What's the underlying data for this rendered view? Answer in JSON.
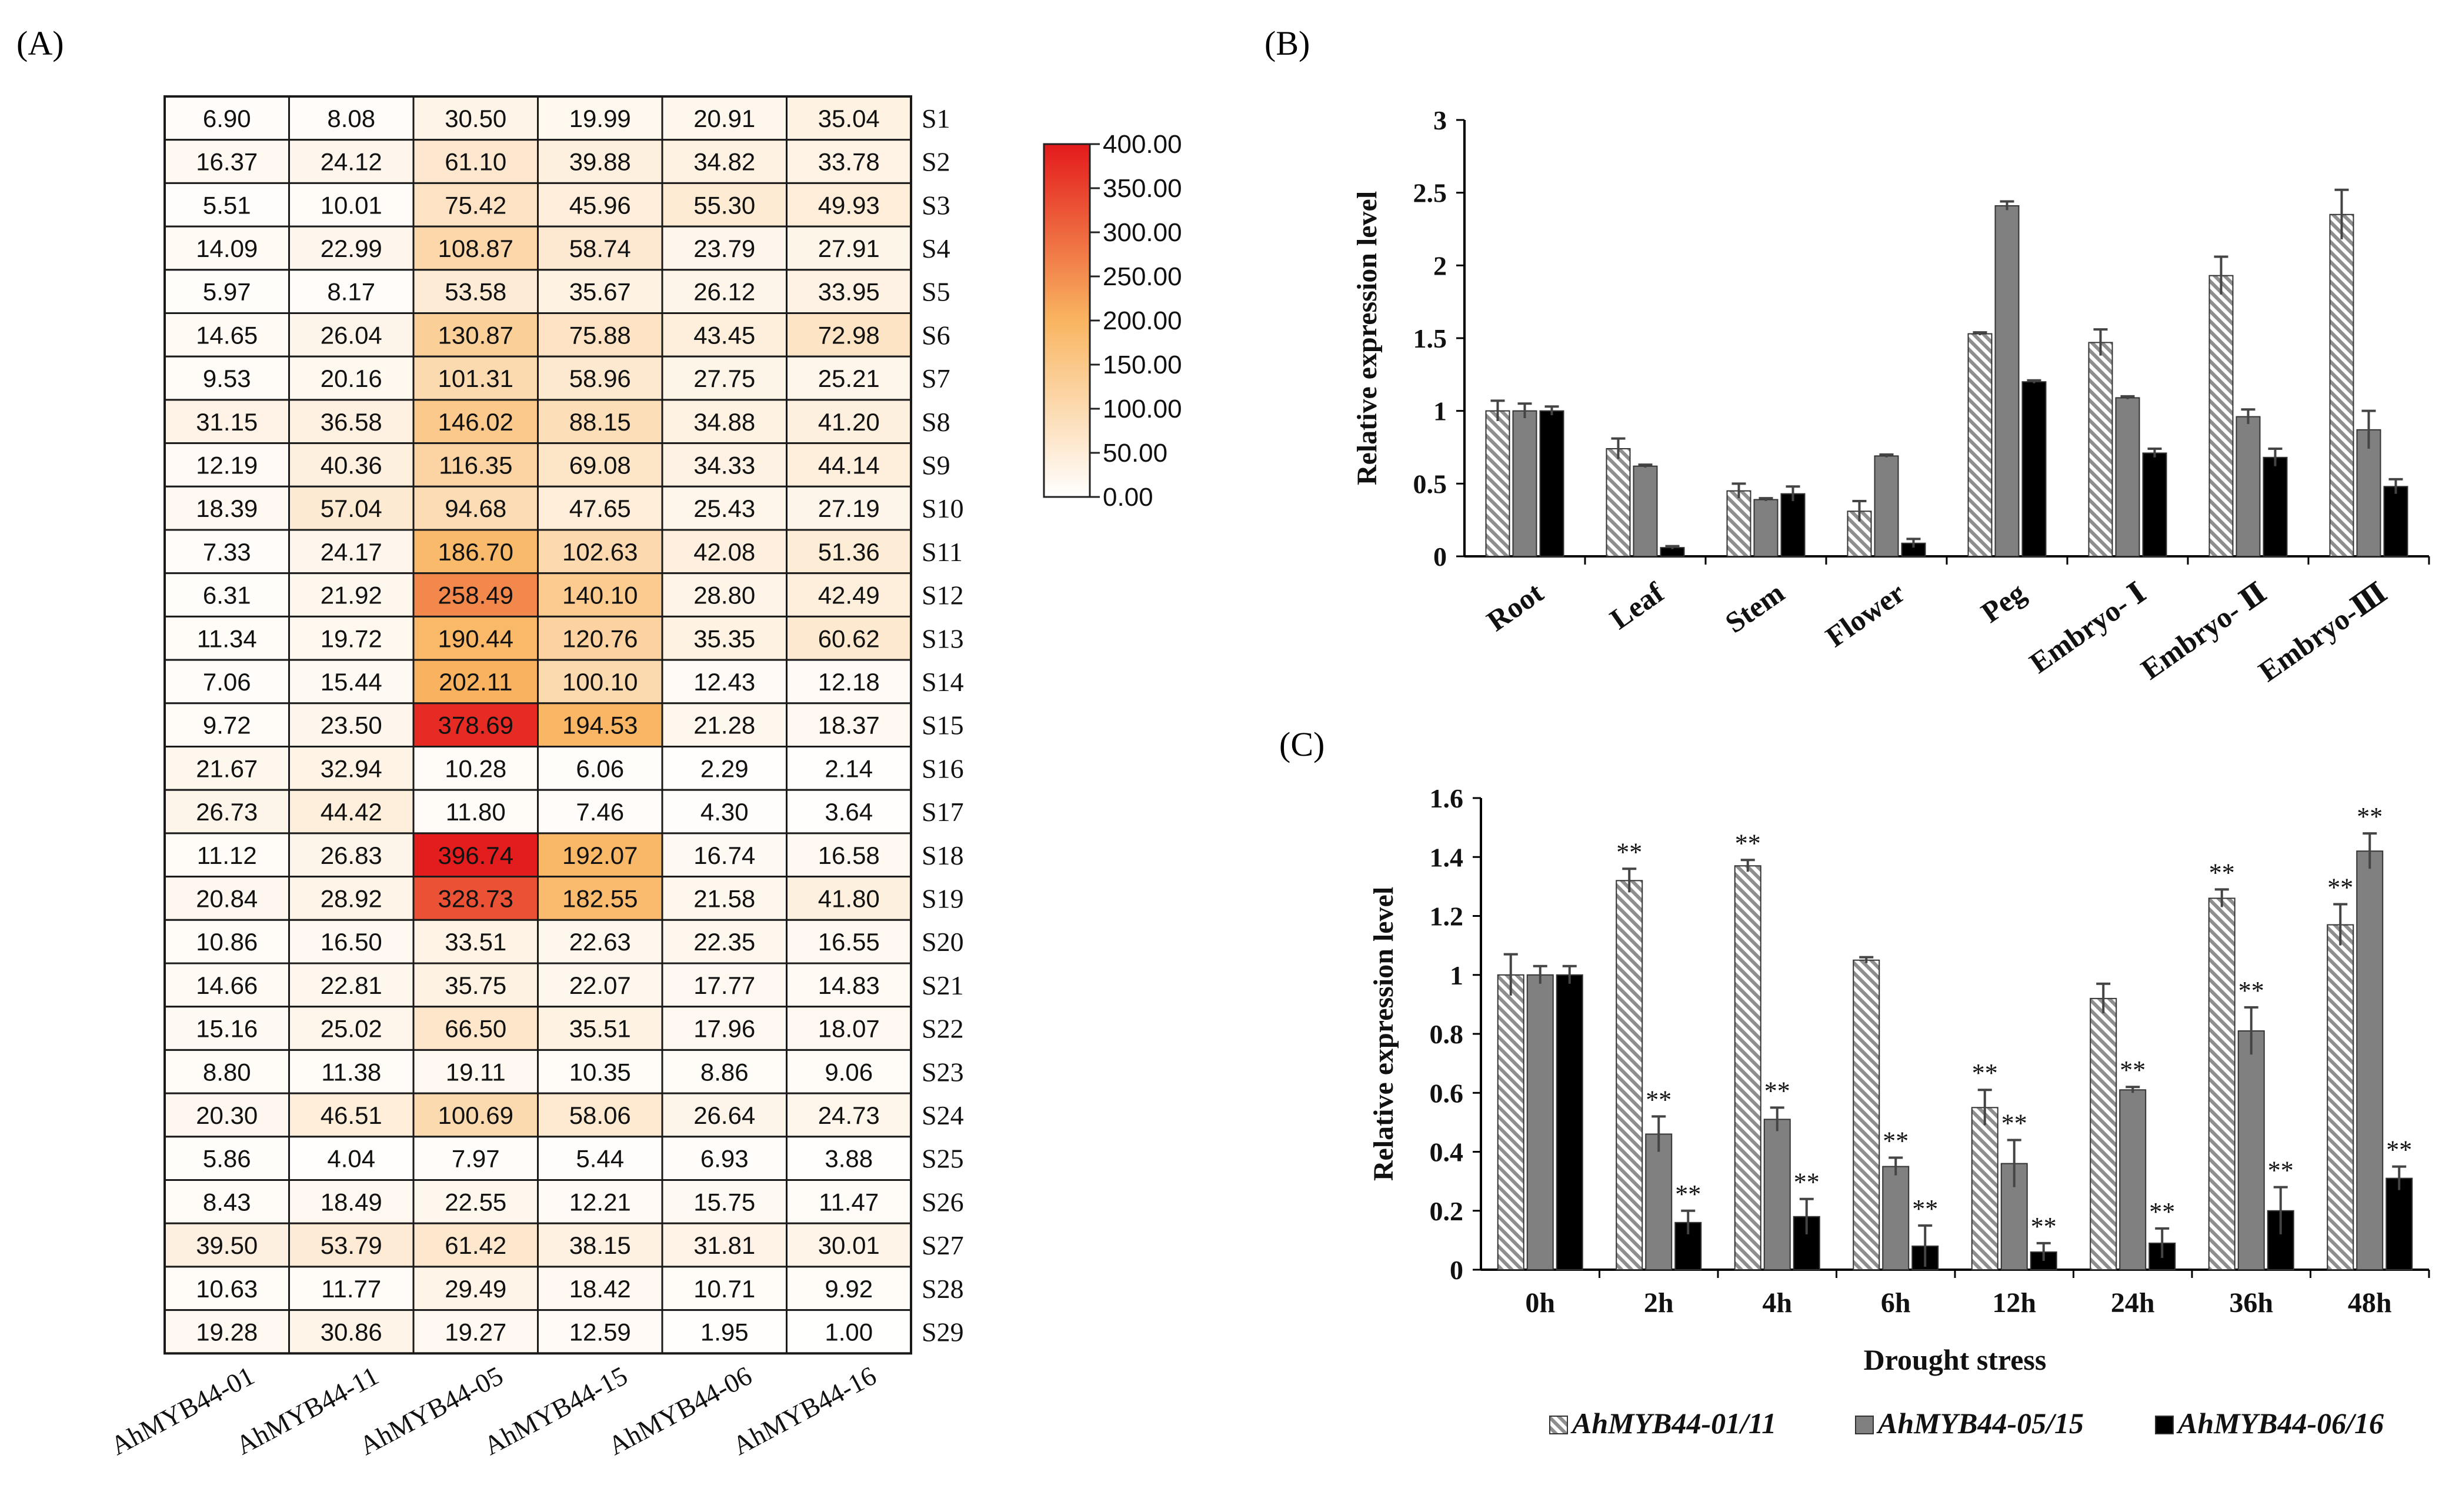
{
  "panel_labels": {
    "a": "(A)",
    "b": "(B)",
    "c": "(C)"
  },
  "colors": {
    "heat_low": "#ffffff",
    "heat_mid": "#f9b561",
    "heat_high": "#e31a1c",
    "hatch": "#9e9e9e",
    "gray_bar": "#808080",
    "black_bar": "#000000"
  },
  "chart_data": [
    {
      "type": "heatmap",
      "id": "A",
      "columns": [
        "AhMYB44-01",
        "AhMYB44-11",
        "AhMYB44-05",
        "AhMYB44-15",
        "AhMYB44-06",
        "AhMYB44-16"
      ],
      "rows": [
        "S1",
        "S2",
        "S3",
        "S4",
        "S5",
        "S6",
        "S7",
        "S8",
        "S9",
        "S10",
        "S11",
        "S12",
        "S13",
        "S14",
        "S15",
        "S16",
        "S17",
        "S18",
        "S19",
        "S20",
        "S21",
        "S22",
        "S23",
        "S24",
        "S25",
        "S26",
        "S27",
        "S28",
        "S29"
      ],
      "values": [
        [
          "6.90",
          "8.08",
          "30.50",
          "19.99",
          "20.91",
          "35.04"
        ],
        [
          "16.37",
          "24.12",
          "61.10",
          "39.88",
          "34.82",
          "33.78"
        ],
        [
          "5.51",
          "10.01",
          "75.42",
          "45.96",
          "55.30",
          "49.93"
        ],
        [
          "14.09",
          "22.99",
          "108.87",
          "58.74",
          "23.79",
          "27.91"
        ],
        [
          "5.97",
          "8.17",
          "53.58",
          "35.67",
          "26.12",
          "33.95"
        ],
        [
          "14.65",
          "26.04",
          "130.87",
          "75.88",
          "43.45",
          "72.98"
        ],
        [
          "9.53",
          "20.16",
          "101.31",
          "58.96",
          "27.75",
          "25.21"
        ],
        [
          "31.15",
          "36.58",
          "146.02",
          "88.15",
          "34.88",
          "41.20"
        ],
        [
          "12.19",
          "40.36",
          "116.35",
          "69.08",
          "34.33",
          "44.14"
        ],
        [
          "18.39",
          "57.04",
          "94.68",
          "47.65",
          "25.43",
          "27.19"
        ],
        [
          "7.33",
          "24.17",
          "186.70",
          "102.63",
          "42.08",
          "51.36"
        ],
        [
          "6.31",
          "21.92",
          "258.49",
          "140.10",
          "28.80",
          "42.49"
        ],
        [
          "11.34",
          "19.72",
          "190.44",
          "120.76",
          "35.35",
          "60.62"
        ],
        [
          "7.06",
          "15.44",
          "202.11",
          "100.10",
          "12.43",
          "12.18"
        ],
        [
          "9.72",
          "23.50",
          "378.69",
          "194.53",
          "21.28",
          "18.37"
        ],
        [
          "21.67",
          "32.94",
          "10.28",
          "6.06",
          "2.29",
          "2.14"
        ],
        [
          "26.73",
          "44.42",
          "11.80",
          "7.46",
          "4.30",
          "3.64"
        ],
        [
          "11.12",
          "26.83",
          "396.74",
          "192.07",
          "16.74",
          "16.58"
        ],
        [
          "20.84",
          "28.92",
          "328.73",
          "182.55",
          "21.58",
          "41.80"
        ],
        [
          "10.86",
          "16.50",
          "33.51",
          "22.63",
          "22.35",
          "16.55"
        ],
        [
          "14.66",
          "22.81",
          "35.75",
          "22.07",
          "17.77",
          "14.83"
        ],
        [
          "15.16",
          "25.02",
          "66.50",
          "35.51",
          "17.96",
          "18.07"
        ],
        [
          "8.80",
          "11.38",
          "19.11",
          "10.35",
          "8.86",
          "9.06"
        ],
        [
          "20.30",
          "46.51",
          "100.69",
          "58.06",
          "26.64",
          "24.73"
        ],
        [
          "5.86",
          "4.04",
          "7.97",
          "5.44",
          "6.93",
          "3.88"
        ],
        [
          "8.43",
          "18.49",
          "22.55",
          "12.21",
          "15.75",
          "11.47"
        ],
        [
          "39.50",
          "53.79",
          "61.42",
          "38.15",
          "31.81",
          "30.01"
        ],
        [
          "10.63",
          "11.77",
          "29.49",
          "18.42",
          "10.71",
          "9.92"
        ],
        [
          "19.28",
          "30.86",
          "19.27",
          "12.59",
          "1.95",
          "1.00"
        ]
      ],
      "scale": {
        "min": 0,
        "max": 400
      },
      "legend_ticks": [
        "400.00",
        "350.00",
        "300.00",
        "250.00",
        "200.00",
        "150.00",
        "100.00",
        "50.00",
        "0.00"
      ]
    },
    {
      "type": "bar",
      "id": "B",
      "ylabel": "Relative expression level",
      "ylim": [
        0,
        3
      ],
      "yticks": [
        "0",
        "0.5",
        "1",
        "1.5",
        "2",
        "2.5",
        "3"
      ],
      "categories": [
        "Root",
        "Leaf",
        "Stem",
        "Flower",
        "Peg",
        "Embryo- Ⅰ",
        "Embryo- Ⅱ",
        "Embryo-Ⅲ"
      ],
      "series": [
        {
          "name": "AhMYB44-01/11",
          "style": "hatch",
          "values": [
            1.0,
            0.74,
            0.45,
            0.31,
            1.53,
            1.47,
            1.93,
            2.35
          ],
          "errors": [
            0.07,
            0.07,
            0.05,
            0.07,
            0.01,
            0.09,
            0.13,
            0.17
          ]
        },
        {
          "name": "AhMYB44-05/15",
          "style": "gray",
          "values": [
            1.0,
            0.62,
            0.39,
            0.69,
            2.41,
            1.09,
            0.96,
            0.87
          ],
          "errors": [
            0.05,
            0.01,
            0.01,
            0.01,
            0.03,
            0.01,
            0.05,
            0.13
          ]
        },
        {
          "name": "AhMYB44-06/16",
          "style": "black",
          "values": [
            1.0,
            0.06,
            0.43,
            0.09,
            1.2,
            0.71,
            0.68,
            0.48
          ],
          "errors": [
            0.03,
            0.01,
            0.05,
            0.03,
            0.01,
            0.03,
            0.06,
            0.05
          ]
        }
      ]
    },
    {
      "type": "bar",
      "id": "C",
      "xlabel": "Drought stress",
      "ylabel": "Relative expression level",
      "ylim": [
        0,
        1.6
      ],
      "yticks": [
        "0",
        "0.2",
        "0.4",
        "0.6",
        "0.8",
        "1",
        "1.2",
        "1.4",
        "1.6"
      ],
      "categories": [
        "0h",
        "2h",
        "4h",
        "6h",
        "12h",
        "24h",
        "36h",
        "48h"
      ],
      "series": [
        {
          "name": "AhMYB44-01/11",
          "style": "hatch",
          "values": [
            1.0,
            1.32,
            1.37,
            1.05,
            0.55,
            0.92,
            1.26,
            1.17
          ],
          "errors": [
            0.07,
            0.04,
            0.02,
            0.01,
            0.06,
            0.05,
            0.03,
            0.07
          ],
          "marks": [
            "",
            "**",
            "**",
            "",
            "**",
            "",
            "**",
            "**"
          ]
        },
        {
          "name": "AhMYB44-05/15",
          "style": "gray",
          "values": [
            1.0,
            0.46,
            0.51,
            0.35,
            0.36,
            0.61,
            0.81,
            1.42
          ],
          "errors": [
            0.03,
            0.06,
            0.04,
            0.03,
            0.08,
            0.01,
            0.08,
            0.06
          ],
          "marks": [
            "",
            "**",
            "**",
            "**",
            "**",
            "**",
            "**",
            "**"
          ]
        },
        {
          "name": "AhMYB44-06/16",
          "style": "black",
          "values": [
            1.0,
            0.16,
            0.18,
            0.08,
            0.06,
            0.09,
            0.2,
            0.31
          ],
          "errors": [
            0.03,
            0.04,
            0.06,
            0.07,
            0.03,
            0.05,
            0.08,
            0.04
          ],
          "marks": [
            "",
            "**",
            "**",
            "**",
            "**",
            "**",
            "**",
            "**"
          ]
        }
      ],
      "legend": [
        "AhMYB44-01/11",
        "AhMYB44-05/15",
        "AhMYB44-06/16"
      ]
    }
  ]
}
